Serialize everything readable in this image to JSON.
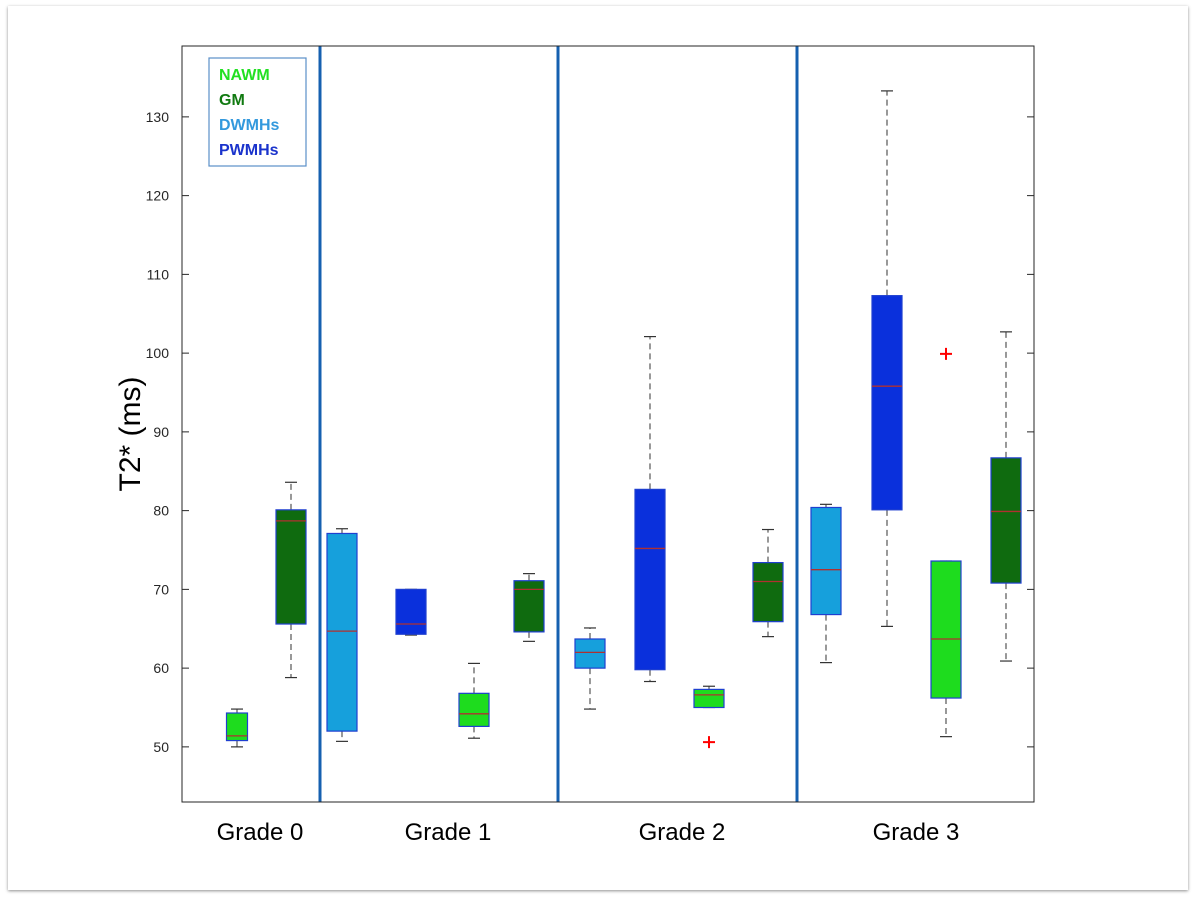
{
  "chart_data": {
    "type": "boxplot",
    "ylabel": "T2* (ms)",
    "ylim": [
      43,
      139
    ],
    "yticks": [
      50,
      60,
      70,
      80,
      90,
      100,
      110,
      120,
      130
    ],
    "grid": false,
    "legend": {
      "placement": "top-left",
      "entries": [
        {
          "label": "NAWM",
          "color": "#22e022"
        },
        {
          "label": "GM",
          "color": "#117a11"
        },
        {
          "label": "DWMHs",
          "color": "#3399dd"
        },
        {
          "label": "PWMHs",
          "color": "#1a33cc"
        }
      ]
    },
    "colors": {
      "NAWM": "#1edc1e",
      "GM": "#0f6b0f",
      "DWMHs": "#16a0dc",
      "PWMHs": "#0a30dc",
      "median": "#b03030",
      "outlier": "#ff0000",
      "separator": "#1660b0",
      "box_border": "#1f3fd0"
    },
    "groups": [
      {
        "label": "Grade 0",
        "boxes": [
          {
            "series": "NAWM",
            "min": 50.0,
            "q1": 50.8,
            "median": 51.4,
            "q3": 54.3,
            "max": 54.8,
            "outliers": []
          },
          {
            "series": "GM",
            "min": 58.8,
            "q1": 65.6,
            "median": 78.7,
            "q3": 80.1,
            "max": 83.6,
            "outliers": []
          }
        ]
      },
      {
        "label": "Grade 1",
        "boxes": [
          {
            "series": "DWMHs",
            "min": 50.7,
            "q1": 52.0,
            "median": 64.7,
            "q3": 77.1,
            "max": 77.7,
            "outliers": []
          },
          {
            "series": "PWMHs",
            "min": 64.2,
            "q1": 64.3,
            "median": 65.6,
            "q3": 70.0,
            "max": 70.0,
            "outliers": []
          },
          {
            "series": "NAWM",
            "min": 51.1,
            "q1": 52.6,
            "median": 54.2,
            "q3": 56.8,
            "max": 60.6,
            "outliers": []
          },
          {
            "series": "GM",
            "min": 63.4,
            "q1": 64.6,
            "median": 70.0,
            "q3": 71.1,
            "max": 72.0,
            "outliers": []
          }
        ]
      },
      {
        "label": "Grade 2",
        "boxes": [
          {
            "series": "DWMHs",
            "min": 54.8,
            "q1": 60.0,
            "median": 62.0,
            "q3": 63.7,
            "max": 65.1,
            "outliers": []
          },
          {
            "series": "PWMHs",
            "min": 58.3,
            "q1": 59.8,
            "median": 75.2,
            "q3": 82.7,
            "max": 102.1,
            "outliers": []
          },
          {
            "series": "NAWM",
            "min": 55.0,
            "q1": 55.0,
            "median": 56.6,
            "q3": 57.3,
            "max": 57.7,
            "outliers": [
              50.6
            ]
          },
          {
            "series": "GM",
            "min": 64.0,
            "q1": 65.9,
            "median": 71.0,
            "q3": 73.4,
            "max": 77.6,
            "outliers": []
          }
        ]
      },
      {
        "label": "Grade 3",
        "boxes": [
          {
            "series": "DWMHs",
            "min": 60.7,
            "q1": 66.8,
            "median": 72.5,
            "q3": 80.4,
            "max": 80.8,
            "outliers": []
          },
          {
            "series": "PWMHs",
            "min": 65.3,
            "q1": 80.1,
            "median": 95.8,
            "q3": 107.3,
            "max": 133.3,
            "outliers": []
          },
          {
            "series": "NAWM",
            "min": 51.3,
            "q1": 56.2,
            "median": 63.7,
            "q3": 73.6,
            "max": 73.6,
            "outliers": [
              99.9
            ]
          },
          {
            "series": "GM",
            "min": 60.9,
            "q1": 70.8,
            "median": 79.9,
            "q3": 86.7,
            "max": 102.7,
            "outliers": []
          }
        ]
      }
    ]
  }
}
